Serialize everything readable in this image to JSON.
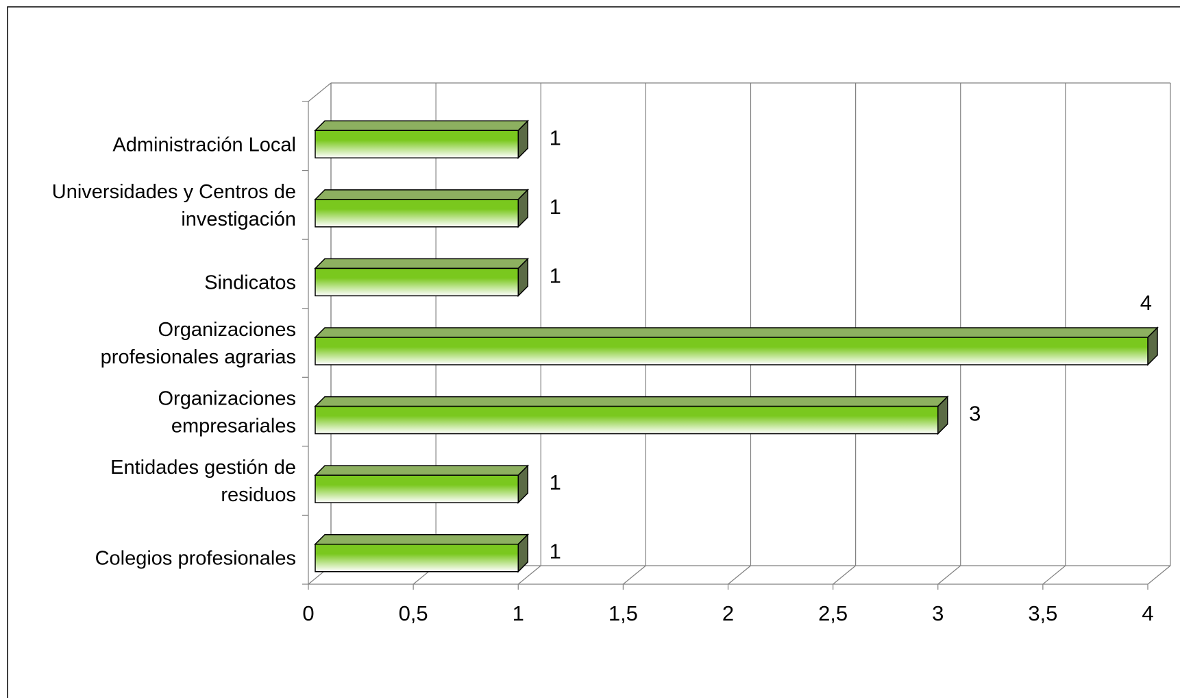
{
  "chart_data": {
    "type": "bar",
    "orientation": "horizontal",
    "three_d": true,
    "categories": [
      [
        "Administración Local"
      ],
      [
        "Universidades y Centros de",
        "investigación"
      ],
      [
        "Sindicatos"
      ],
      [
        "Organizaciones",
        "profesionales agrarias"
      ],
      [
        "Organizaciones",
        "empresariales"
      ],
      [
        "Entidades gestión de",
        "residuos"
      ],
      [
        "Colegios profesionales"
      ]
    ],
    "values": [
      1,
      1,
      1,
      4,
      3,
      1,
      1
    ],
    "data_labels": [
      "1",
      "1",
      "1",
      "4",
      "3",
      "1",
      "1"
    ],
    "x_ticks": [
      "0",
      "0,5",
      "1",
      "1,5",
      "2",
      "2,5",
      "3",
      "3,5",
      "4"
    ],
    "xlim": [
      0,
      4
    ],
    "grid": "vertical",
    "legend": "none",
    "colors": {
      "bar_dark": "#7ac81e",
      "bar_light": "#ffffff",
      "bar_top": "#8db060",
      "bar_side": "#5b6b45",
      "grid": "#808080",
      "border": "#000000"
    }
  }
}
